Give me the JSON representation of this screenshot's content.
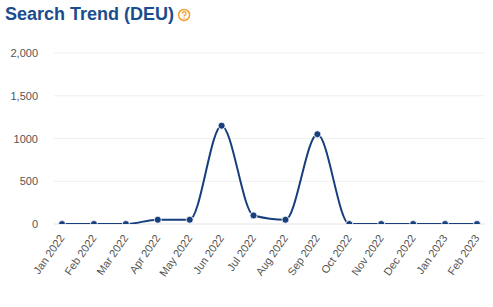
{
  "chart_data": {
    "type": "line",
    "title": "Search Trend (DEU)",
    "categories": [
      "Jan 2022",
      "Feb 2022",
      "Mar 2022",
      "Apr 2022",
      "May 2022",
      "Jun 2022",
      "Jul 2022",
      "Aug 2022",
      "Sep 2022",
      "Oct 2022",
      "Nov 2022",
      "Dec 2022",
      "Jan 2023",
      "Feb 2023"
    ],
    "values": [
      0,
      0,
      0,
      50,
      50,
      1150,
      100,
      50,
      1050,
      0,
      0,
      0,
      0,
      0
    ],
    "color": "#173f7e",
    "marker": "circle",
    "ylim": [
      0,
      2000
    ],
    "yticks": [
      0,
      500,
      1000,
      {
        "value": 1500,
        "label": "1,500"
      },
      {
        "value": 2000,
        "label": "2,000"
      }
    ],
    "grid": true
  }
}
